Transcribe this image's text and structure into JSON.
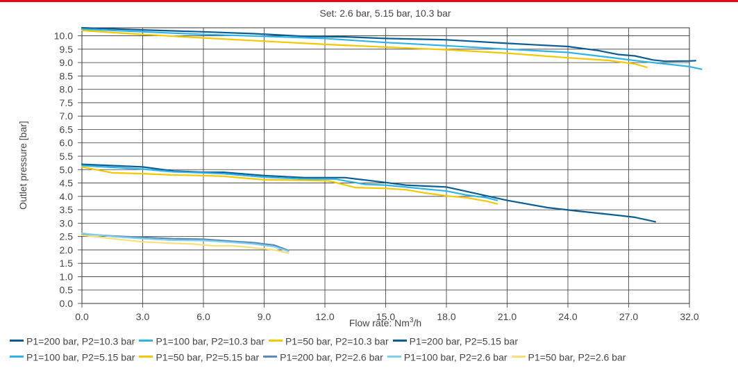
{
  "chart_data": {
    "type": "line",
    "title": "Set: 2.6 bar, 5.15 bar, 10.3 bar",
    "xlabel": "Flow rate: Nm³/h",
    "ylabel": "Outlet pressure [bar]",
    "xticks": [
      "0.0",
      "3.0",
      "6.0",
      "9.0",
      "12.0",
      "15.0",
      "18.0",
      "21.0",
      "24.0",
      "27.0",
      "32.0"
    ],
    "yticks": [
      "0.0",
      "0.5",
      "1.0",
      "1.5",
      "2.0",
      "2.5",
      "3.0",
      "3.5",
      "4.0",
      "4.5",
      "5.0",
      "5.5",
      "6.0",
      "6.5",
      "7.0",
      "7.5",
      "8.0",
      "8.5",
      "9.0",
      "9.5",
      "10.0"
    ],
    "ylim": [
      0,
      10.3
    ],
    "grid": true,
    "legend_position": "bottom",
    "series": [
      {
        "name": "P1=200 bar, P2=10.3 bar",
        "color": "#0b5e93",
        "points": [
          [
            0,
            10.3
          ],
          [
            3,
            10.22
          ],
          [
            6,
            10.15
          ],
          [
            8.5,
            10.08
          ],
          [
            11,
            9.98
          ],
          [
            13,
            9.96
          ],
          [
            15,
            9.9
          ],
          [
            18,
            9.85
          ],
          [
            21,
            9.72
          ],
          [
            24,
            9.6
          ],
          [
            25.5,
            9.45
          ],
          [
            26.5,
            9.3
          ],
          [
            27.5,
            9.25
          ],
          [
            29,
            9.1
          ],
          [
            30,
            9.05
          ],
          [
            32,
            9.06
          ],
          [
            32.5,
            9.07
          ]
        ]
      },
      {
        "name": "P1=100 bar, P2=10.3 bar",
        "color": "#2fb3e6",
        "points": [
          [
            0,
            10.25
          ],
          [
            3,
            10.15
          ],
          [
            6,
            10.05
          ],
          [
            9,
            9.98
          ],
          [
            12,
            9.9
          ],
          [
            15,
            9.75
          ],
          [
            18,
            9.63
          ],
          [
            21,
            9.5
          ],
          [
            24,
            9.38
          ],
          [
            26,
            9.2
          ],
          [
            28,
            9.05
          ],
          [
            30,
            8.95
          ],
          [
            32,
            8.85
          ],
          [
            33,
            8.75
          ]
        ]
      },
      {
        "name": "P1=50 bar, P2=10.3 bar",
        "color": "#f2c800",
        "points": [
          [
            0,
            10.2
          ],
          [
            3,
            10.05
          ],
          [
            6,
            9.92
          ],
          [
            9,
            9.8
          ],
          [
            12,
            9.68
          ],
          [
            15,
            9.58
          ],
          [
            18,
            9.48
          ],
          [
            21,
            9.35
          ],
          [
            24,
            9.18
          ],
          [
            26,
            9.08
          ],
          [
            27.5,
            8.95
          ],
          [
            28.5,
            8.82
          ]
        ]
      },
      {
        "name": "P1=200 bar, P2=5.15 bar",
        "color": "#0b5e93",
        "points": [
          [
            0,
            5.2
          ],
          [
            3,
            5.1
          ],
          [
            4.5,
            4.95
          ],
          [
            6,
            4.9
          ],
          [
            7,
            4.9
          ],
          [
            9,
            4.78
          ],
          [
            11,
            4.7
          ],
          [
            13,
            4.7
          ],
          [
            15,
            4.52
          ],
          [
            16,
            4.42
          ],
          [
            18,
            4.35
          ],
          [
            21,
            3.85
          ],
          [
            23,
            3.58
          ],
          [
            24.5,
            3.45
          ],
          [
            26,
            3.33
          ],
          [
            27.5,
            3.22
          ],
          [
            28.5,
            3.12
          ],
          [
            29.2,
            3.05
          ]
        ]
      },
      {
        "name": "P1=100 bar, P2=5.15 bar",
        "color": "#2fb3e6",
        "points": [
          [
            0,
            5.15
          ],
          [
            3,
            5.02
          ],
          [
            4.5,
            4.92
          ],
          [
            6,
            4.88
          ],
          [
            7,
            4.85
          ],
          [
            9,
            4.72
          ],
          [
            11,
            4.65
          ],
          [
            12.5,
            4.65
          ],
          [
            14,
            4.45
          ],
          [
            15,
            4.42
          ],
          [
            18,
            4.2
          ],
          [
            19,
            4.05
          ],
          [
            20,
            3.95
          ],
          [
            20.5,
            3.85
          ]
        ]
      },
      {
        "name": "P1=50 bar, P2=5.15 bar",
        "color": "#f2c800",
        "points": [
          [
            0,
            5.1
          ],
          [
            1.5,
            4.88
          ],
          [
            3,
            4.85
          ],
          [
            4.5,
            4.8
          ],
          [
            6,
            4.78
          ],
          [
            7,
            4.75
          ],
          [
            9,
            4.62
          ],
          [
            11,
            4.6
          ],
          [
            12.2,
            4.58
          ],
          [
            13.5,
            4.33
          ],
          [
            15,
            4.3
          ],
          [
            16,
            4.25
          ],
          [
            17,
            4.12
          ],
          [
            18,
            4.02
          ],
          [
            19,
            3.95
          ],
          [
            20,
            3.82
          ],
          [
            20.5,
            3.72
          ]
        ]
      },
      {
        "name": "P1=200 bar, P2=2.6 bar",
        "color": "#5b88b5",
        "points": [
          [
            0,
            2.6
          ],
          [
            1.5,
            2.52
          ],
          [
            3,
            2.47
          ],
          [
            4.5,
            2.42
          ],
          [
            6,
            2.4
          ],
          [
            7.5,
            2.32
          ],
          [
            8.5,
            2.27
          ],
          [
            9.5,
            2.18
          ],
          [
            10.2,
            1.98
          ]
        ]
      },
      {
        "name": "P1=100 bar, P2=2.6 bar",
        "color": "#7dd0ee",
        "points": [
          [
            0,
            2.62
          ],
          [
            1.5,
            2.5
          ],
          [
            3,
            2.42
          ],
          [
            4.5,
            2.36
          ],
          [
            6,
            2.35
          ],
          [
            7.5,
            2.28
          ],
          [
            8.5,
            2.22
          ],
          [
            9.5,
            2.12
          ],
          [
            10.2,
            1.95
          ]
        ]
      },
      {
        "name": "P1=50 bar, P2=2.6 bar",
        "color": "#f7df7a",
        "points": [
          [
            0,
            2.55
          ],
          [
            1.5,
            2.42
          ],
          [
            3,
            2.3
          ],
          [
            4.5,
            2.25
          ],
          [
            5.5,
            2.22
          ],
          [
            6.5,
            2.15
          ],
          [
            7.5,
            2.15
          ],
          [
            8.5,
            2.08
          ],
          [
            9.5,
            2.0
          ],
          [
            10.2,
            1.88
          ]
        ]
      }
    ]
  }
}
